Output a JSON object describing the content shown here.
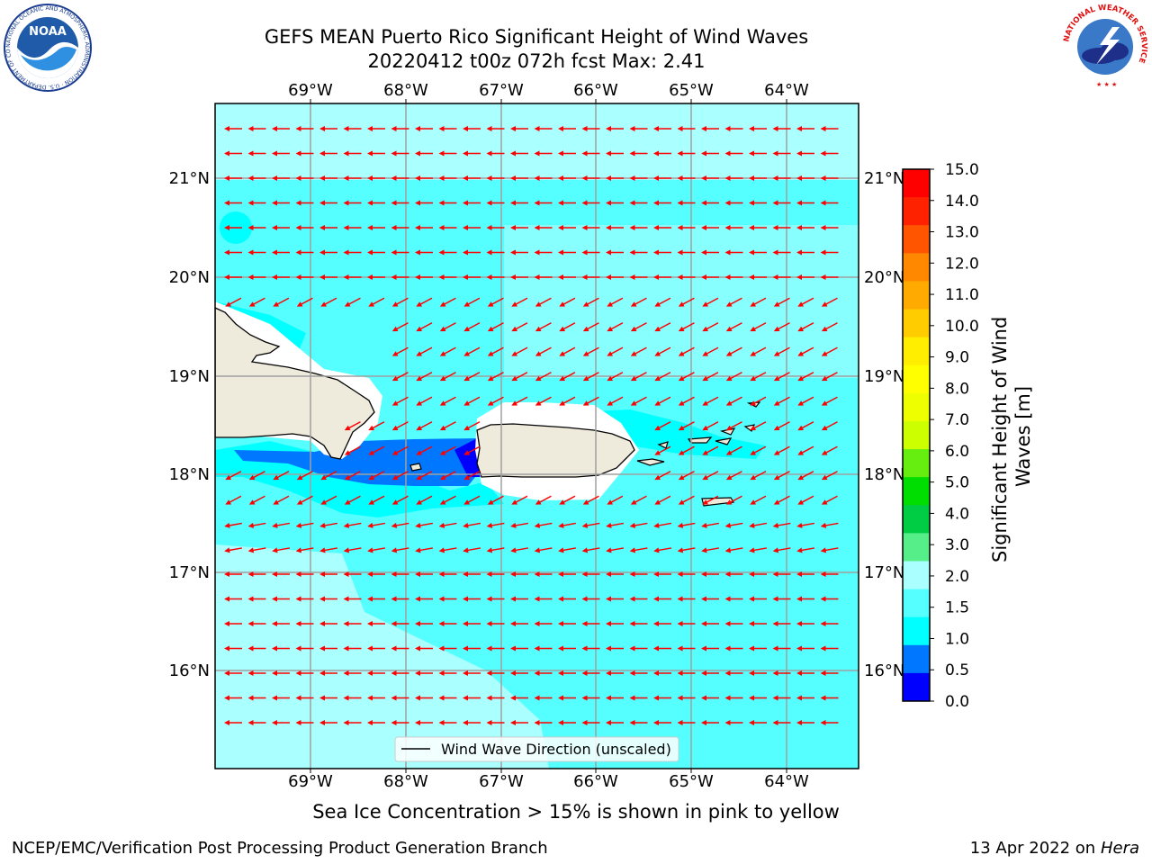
{
  "header": {
    "title_line1": "GEFS MEAN Puerto Rico Significant Height of Wind Waves",
    "title_line2": "20220412 t00z 072h fcst   Max: 2.41"
  },
  "logos": {
    "noaa_text": "NOAA",
    "noaa_ring": "NATIONAL OCEANIC AND ATMOSPHERIC ADMINISTRATION · U.S. DEPARTMENT OF COMMERCE",
    "nws_ring": "NATIONAL WEATHER SERVICE"
  },
  "map": {
    "lon_labels": [
      "69°W",
      "68°W",
      "67°W",
      "66°W",
      "65°W",
      "64°W"
    ],
    "lat_labels": [
      "21°N",
      "20°N",
      "19°N",
      "18°N",
      "17°N",
      "16°N"
    ],
    "legend_label": "Wind Wave Direction (unscaled)",
    "arrow_color": "#ff0000",
    "land_color": "#efebdc"
  },
  "colorbar": {
    "label": "Significant Height of Wind Waves [m]",
    "ticks": [
      "15.0",
      "14.0",
      "13.0",
      "12.0",
      "11.0",
      "10.0",
      "9.0",
      "8.0",
      "7.0",
      "6.0",
      "5.0",
      "4.0",
      "3.0",
      "2.0",
      "1.5",
      "1.0",
      "0.5",
      "0.0"
    ],
    "colors_top_to_bottom": [
      "#ff0000",
      "#ff2200",
      "#ff5500",
      "#ff8800",
      "#ffaa00",
      "#ffcc00",
      "#ffee00",
      "#ffff00",
      "#eeff00",
      "#ccff00",
      "#66ee11",
      "#00dd00",
      "#00cc44",
      "#55ee88",
      "#aaffff",
      "#55ffff",
      "#00ffff",
      "#0077ff",
      "#0000ff"
    ]
  },
  "caption": "Sea Ice Concentration > 15% is shown in pink to yellow",
  "footer": {
    "left": "NCEP/EMC/Verification Post Processing Product Generation Branch",
    "right_prefix": "13 Apr 2022 on ",
    "right_host": "Hera"
  }
}
